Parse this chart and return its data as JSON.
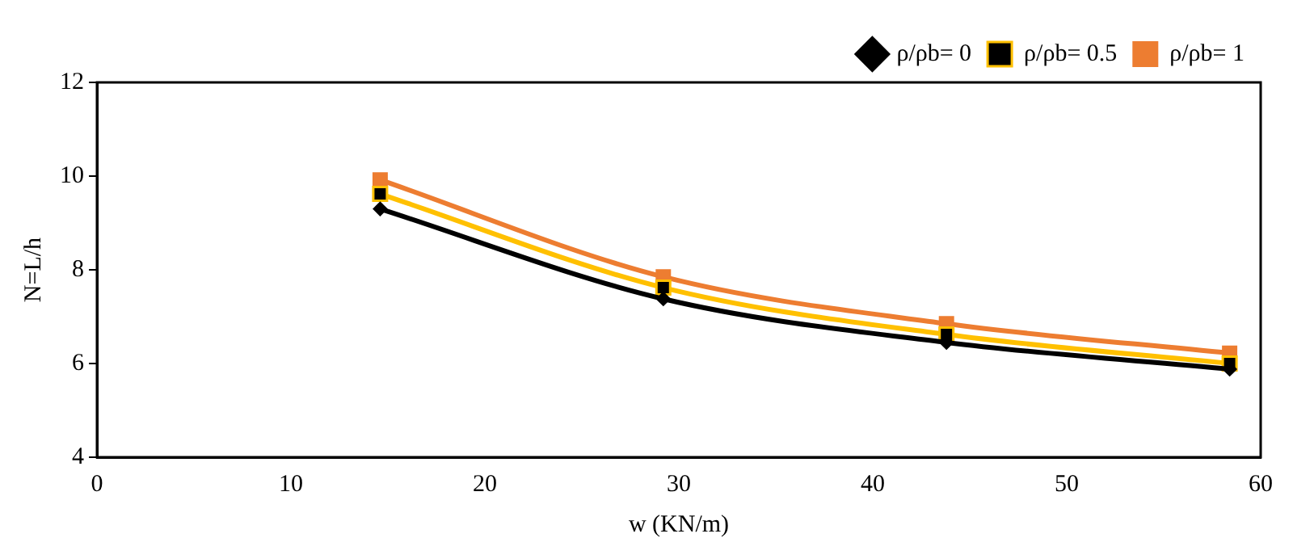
{
  "chart_data": {
    "type": "line",
    "xlabel": "w (KN/m)",
    "ylabel": "N=L/h",
    "x": [
      14.6,
      29.2,
      43.8,
      58.4
    ],
    "series": [
      {
        "name": "ρ/ρb= 0",
        "color": "#000000",
        "marker": "diamond",
        "values": [
          9.3,
          7.38,
          6.45,
          5.88
        ]
      },
      {
        "name": "ρ/ρb= 0.5",
        "color": "#ffc000",
        "marker": "square",
        "values": [
          9.62,
          7.62,
          6.62,
          6.0
        ]
      },
      {
        "name": "ρ/ρb= 1",
        "color": "#ed7d31",
        "marker": "square",
        "values": [
          9.92,
          7.85,
          6.85,
          6.22
        ]
      }
    ],
    "xlim": [
      0,
      60
    ],
    "xticks": [
      0,
      10,
      20,
      30,
      40,
      50,
      60
    ],
    "ylim": [
      4,
      12
    ],
    "yticks": [
      4,
      6,
      8,
      10,
      12
    ],
    "grid": false,
    "legend": "top right",
    "line_style": "solid"
  }
}
